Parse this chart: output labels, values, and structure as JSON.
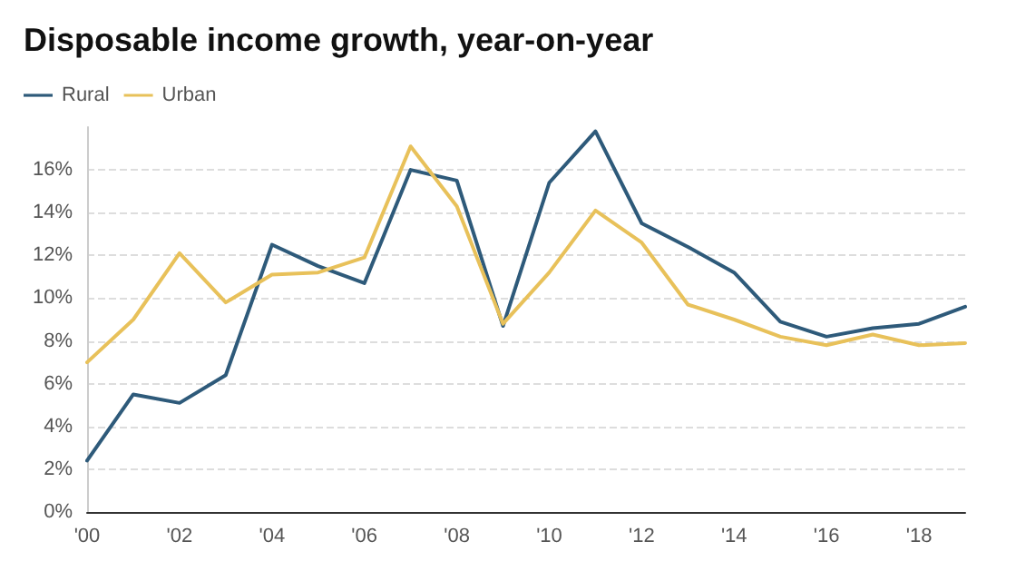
{
  "chart_data": {
    "type": "line",
    "title": "Disposable income growth, year-on-year",
    "categories": [
      "'00",
      null,
      "'02",
      null,
      "'04",
      null,
      "'06",
      null,
      "'08",
      null,
      "'10",
      null,
      "'12",
      null,
      "'14",
      null,
      "'16",
      null,
      "'18",
      null
    ],
    "series": [
      {
        "name": "Rural",
        "color": "#2e5a7a",
        "values": [
          2.4,
          5.5,
          5.1,
          6.4,
          12.5,
          11.5,
          10.7,
          16.0,
          15.5,
          8.7,
          15.4,
          17.8,
          13.5,
          12.4,
          11.2,
          8.9,
          8.2,
          8.6,
          8.8,
          9.6
        ]
      },
      {
        "name": "Urban",
        "color": "#e8c15a",
        "values": [
          7.0,
          9.0,
          12.1,
          9.8,
          11.1,
          11.2,
          11.9,
          17.1,
          14.3,
          8.8,
          11.2,
          14.1,
          12.6,
          9.7,
          9.0,
          8.2,
          7.8,
          8.3,
          7.8,
          7.9
        ]
      }
    ],
    "ylim": [
      0,
      18
    ],
    "yticks": [
      {
        "value": 0,
        "label": "0%"
      },
      {
        "value": 2,
        "label": "2%"
      },
      {
        "value": 4,
        "label": "4%"
      },
      {
        "value": 6,
        "label": "6%"
      },
      {
        "value": 8,
        "label": "8%"
      },
      {
        "value": 10,
        "label": "10%"
      },
      {
        "value": 12,
        "label": "12%"
      },
      {
        "value": 14,
        "label": "14%"
      },
      {
        "value": 16,
        "label": "16%"
      }
    ],
    "grid": "y",
    "legend": "top left",
    "marker": "none",
    "line_style": "solid"
  }
}
